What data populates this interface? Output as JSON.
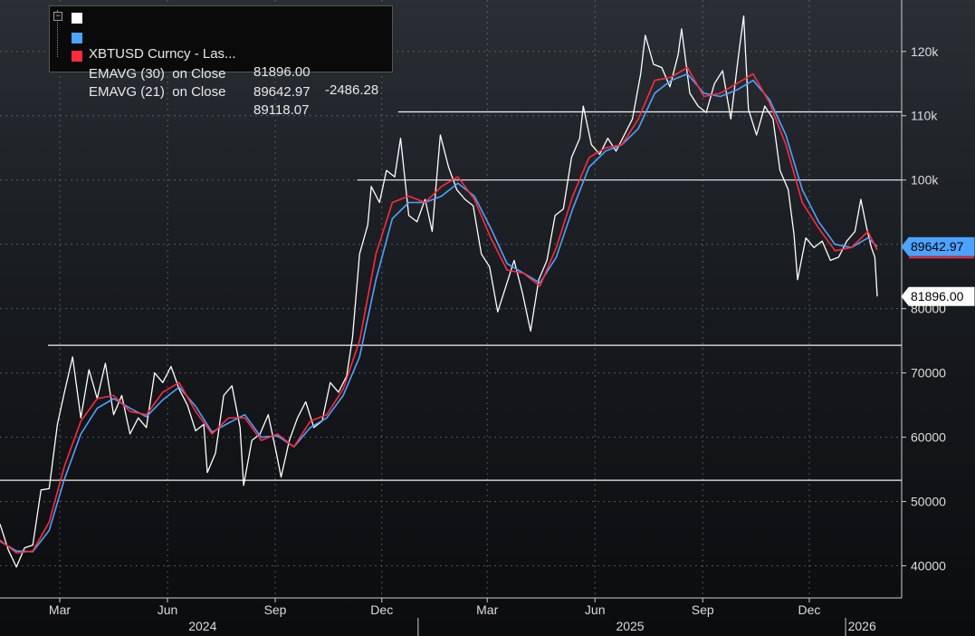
{
  "legend": {
    "rows": [
      {
        "name": "XBTUSD Curncy - Las...",
        "value": "81896.00",
        "change": "-2486.28",
        "color": "#ffffff"
      },
      {
        "name": "EMAVG (30)  on Close",
        "value": "89642.97",
        "color": "#4da3ff"
      },
      {
        "name": "EMAVG (21)  on Close",
        "value": "89118.07",
        "color": "#ff2a3d"
      }
    ]
  },
  "tags": {
    "ema30": "89642.97",
    "last": "81896.00"
  },
  "chart_data": {
    "type": "line",
    "title": "",
    "xlabel": "",
    "ylabel": "",
    "ylim": [
      35000,
      128000
    ],
    "x_range": [
      "2024-01-10",
      "2026-01-28"
    ],
    "y_ticks": [
      {
        "value": 40000,
        "label": "40000"
      },
      {
        "value": 50000,
        "label": "50000"
      },
      {
        "value": 60000,
        "label": "60000"
      },
      {
        "value": 70000,
        "label": "70000"
      },
      {
        "value": 80000,
        "label": "80000"
      },
      {
        "value": 100000,
        "label": "100k"
      },
      {
        "value": 110000,
        "label": "110k"
      },
      {
        "value": 120000,
        "label": "120k"
      }
    ],
    "x_ticks": [
      {
        "date": "2024-03-01",
        "label": "Mar"
      },
      {
        "date": "2024-06-01",
        "label": "Jun"
      },
      {
        "date": "2024-09-01",
        "label": "Sep"
      },
      {
        "date": "2024-12-01",
        "label": "Dec"
      },
      {
        "date": "2025-03-01",
        "label": "Mar"
      },
      {
        "date": "2025-06-01",
        "label": "Jun"
      },
      {
        "date": "2025-09-01",
        "label": "Sep"
      },
      {
        "date": "2025-12-01",
        "label": "Dec"
      }
    ],
    "years": [
      {
        "label": "2024",
        "center": "2024-07-01"
      },
      {
        "label": "2025",
        "center": "2025-07-01"
      },
      {
        "label": "2026",
        "center": "2026-01-15"
      }
    ],
    "year_separators": [
      "2025-01-01",
      "2026-01-01"
    ],
    "horizontal_lines": [
      {
        "value": 53300,
        "from": "2024-01-10"
      },
      {
        "value": 74300,
        "from": "2024-02-20"
      },
      {
        "value": 100000,
        "from": "2024-11-10"
      },
      {
        "value": 110600,
        "from": "2024-12-15"
      }
    ],
    "grid": true,
    "legend_position": "top-left",
    "series": [
      {
        "name": "XBTUSD Curncy - Las...",
        "color": "#ffffff",
        "points": [
          [
            "2024-01-10",
            46500
          ],
          [
            "2024-01-17",
            42500
          ],
          [
            "2024-01-24",
            39800
          ],
          [
            "2024-01-31",
            42800
          ],
          [
            "2024-02-07",
            43200
          ],
          [
            "2024-02-14",
            51800
          ],
          [
            "2024-02-21",
            52000
          ],
          [
            "2024-02-28",
            62000
          ],
          [
            "2024-03-05",
            67000
          ],
          [
            "2024-03-12",
            72500
          ],
          [
            "2024-03-19",
            63000
          ],
          [
            "2024-03-26",
            70500
          ],
          [
            "2024-04-02",
            66000
          ],
          [
            "2024-04-09",
            71500
          ],
          [
            "2024-04-16",
            63500
          ],
          [
            "2024-04-23",
            66500
          ],
          [
            "2024-04-30",
            60500
          ],
          [
            "2024-05-07",
            63000
          ],
          [
            "2024-05-14",
            61500
          ],
          [
            "2024-05-21",
            70000
          ],
          [
            "2024-05-28",
            68500
          ],
          [
            "2024-06-04",
            71000
          ],
          [
            "2024-06-11",
            67500
          ],
          [
            "2024-06-18",
            65000
          ],
          [
            "2024-06-25",
            61000
          ],
          [
            "2024-07-02",
            62000
          ],
          [
            "2024-07-05",
            54500
          ],
          [
            "2024-07-12",
            57500
          ],
          [
            "2024-07-19",
            66500
          ],
          [
            "2024-07-26",
            68000
          ],
          [
            "2024-08-02",
            61500
          ],
          [
            "2024-08-05",
            52500
          ],
          [
            "2024-08-12",
            59500
          ],
          [
            "2024-08-19",
            60500
          ],
          [
            "2024-08-26",
            63500
          ],
          [
            "2024-09-02",
            57500
          ],
          [
            "2024-09-06",
            53800
          ],
          [
            "2024-09-13",
            59500
          ],
          [
            "2024-09-20",
            63000
          ],
          [
            "2024-09-27",
            65500
          ],
          [
            "2024-10-04",
            61500
          ],
          [
            "2024-10-11",
            62500
          ],
          [
            "2024-10-18",
            68500
          ],
          [
            "2024-10-25",
            67000
          ],
          [
            "2024-11-01",
            69500
          ],
          [
            "2024-11-06",
            75500
          ],
          [
            "2024-11-12",
            88500
          ],
          [
            "2024-11-19",
            93000
          ],
          [
            "2024-11-22",
            99000
          ],
          [
            "2024-11-29",
            96500
          ],
          [
            "2024-12-05",
            101500
          ],
          [
            "2024-12-12",
            100500
          ],
          [
            "2024-12-17",
            106500
          ],
          [
            "2024-12-24",
            94500
          ],
          [
            "2024-12-31",
            93500
          ],
          [
            "2025-01-07",
            97000
          ],
          [
            "2025-01-13",
            92000
          ],
          [
            "2025-01-20",
            107000
          ],
          [
            "2025-01-27",
            102000
          ],
          [
            "2025-02-03",
            98500
          ],
          [
            "2025-02-10",
            97000
          ],
          [
            "2025-02-17",
            96000
          ],
          [
            "2025-02-24",
            88500
          ],
          [
            "2025-03-03",
            86500
          ],
          [
            "2025-03-10",
            79500
          ],
          [
            "2025-03-17",
            83500
          ],
          [
            "2025-03-24",
            87500
          ],
          [
            "2025-03-31",
            82500
          ],
          [
            "2025-04-07",
            76500
          ],
          [
            "2025-04-14",
            84500
          ],
          [
            "2025-04-21",
            87500
          ],
          [
            "2025-04-28",
            94500
          ],
          [
            "2025-05-05",
            95500
          ],
          [
            "2025-05-12",
            103500
          ],
          [
            "2025-05-19",
            106500
          ],
          [
            "2025-05-22",
            111500
          ],
          [
            "2025-05-29",
            105500
          ],
          [
            "2025-06-05",
            104000
          ],
          [
            "2025-06-12",
            106500
          ],
          [
            "2025-06-19",
            104500
          ],
          [
            "2025-06-26",
            107000
          ],
          [
            "2025-07-03",
            109500
          ],
          [
            "2025-07-10",
            116500
          ],
          [
            "2025-07-14",
            122500
          ],
          [
            "2025-07-21",
            118000
          ],
          [
            "2025-07-28",
            117500
          ],
          [
            "2025-08-04",
            114500
          ],
          [
            "2025-08-11",
            119500
          ],
          [
            "2025-08-14",
            123500
          ],
          [
            "2025-08-21",
            113500
          ],
          [
            "2025-08-28",
            111500
          ],
          [
            "2025-09-04",
            110500
          ],
          [
            "2025-09-11",
            115000
          ],
          [
            "2025-09-18",
            117000
          ],
          [
            "2025-09-25",
            109500
          ],
          [
            "2025-10-02",
            120000
          ],
          [
            "2025-10-06",
            125500
          ],
          [
            "2025-10-10",
            111000
          ],
          [
            "2025-10-17",
            107000
          ],
          [
            "2025-10-24",
            111500
          ],
          [
            "2025-10-31",
            109500
          ],
          [
            "2025-11-06",
            101500
          ],
          [
            "2025-11-13",
            98500
          ],
          [
            "2025-11-18",
            91500
          ],
          [
            "2025-11-21",
            84500
          ],
          [
            "2025-11-28",
            91000
          ],
          [
            "2025-12-05",
            89500
          ],
          [
            "2025-12-12",
            90500
          ],
          [
            "2025-12-19",
            87500
          ],
          [
            "2025-12-26",
            88000
          ],
          [
            "2026-01-02",
            90500
          ],
          [
            "2026-01-09",
            92000
          ],
          [
            "2026-01-14",
            97000
          ],
          [
            "2026-01-19",
            92500
          ],
          [
            "2026-01-23",
            89500
          ],
          [
            "2026-01-26",
            88000
          ],
          [
            "2026-01-28",
            81896
          ]
        ]
      },
      {
        "name": "EMAVG (30)  on Close",
        "color": "#4da3ff",
        "points": [
          [
            "2024-01-10",
            43800
          ],
          [
            "2024-01-24",
            42300
          ],
          [
            "2024-02-07",
            42200
          ],
          [
            "2024-02-21",
            45500
          ],
          [
            "2024-03-05",
            53500
          ],
          [
            "2024-03-19",
            60500
          ],
          [
            "2024-04-02",
            64500
          ],
          [
            "2024-04-16",
            66000
          ],
          [
            "2024-04-30",
            64500
          ],
          [
            "2024-05-14",
            63200
          ],
          [
            "2024-05-28",
            65800
          ],
          [
            "2024-06-11",
            67800
          ],
          [
            "2024-06-25",
            64800
          ],
          [
            "2024-07-09",
            60800
          ],
          [
            "2024-07-23",
            62200
          ],
          [
            "2024-08-06",
            63500
          ],
          [
            "2024-08-20",
            60000
          ],
          [
            "2024-09-03",
            60200
          ],
          [
            "2024-09-17",
            58500
          ],
          [
            "2024-10-01",
            61500
          ],
          [
            "2024-10-15",
            63000
          ],
          [
            "2024-10-29",
            66500
          ],
          [
            "2024-11-12",
            72500
          ],
          [
            "2024-11-26",
            84500
          ],
          [
            "2024-12-10",
            94000
          ],
          [
            "2024-12-24",
            96500
          ],
          [
            "2025-01-07",
            96500
          ],
          [
            "2025-01-21",
            97500
          ],
          [
            "2025-02-04",
            99500
          ],
          [
            "2025-02-18",
            97500
          ],
          [
            "2025-03-04",
            92500
          ],
          [
            "2025-03-18",
            87000
          ],
          [
            "2025-04-01",
            85500
          ],
          [
            "2025-04-15",
            84000
          ],
          [
            "2025-04-29",
            88000
          ],
          [
            "2025-05-13",
            95500
          ],
          [
            "2025-05-27",
            102000
          ],
          [
            "2025-06-10",
            104500
          ],
          [
            "2025-06-24",
            105500
          ],
          [
            "2025-07-08",
            108000
          ],
          [
            "2025-07-22",
            113500
          ],
          [
            "2025-08-05",
            115500
          ],
          [
            "2025-08-19",
            116500
          ],
          [
            "2025-09-02",
            113500
          ],
          [
            "2025-09-16",
            113000
          ],
          [
            "2025-09-30",
            114000
          ],
          [
            "2025-10-14",
            115500
          ],
          [
            "2025-10-28",
            112500
          ],
          [
            "2025-11-11",
            107000
          ],
          [
            "2025-11-25",
            98500
          ],
          [
            "2025-12-09",
            93500
          ],
          [
            "2025-12-23",
            90000
          ],
          [
            "2026-01-06",
            89500
          ],
          [
            "2026-01-20",
            91000
          ],
          [
            "2026-01-28",
            89643
          ]
        ]
      },
      {
        "name": "EMAVG (21)  on Close",
        "color": "#ff2a3d",
        "points": [
          [
            "2024-01-10",
            44000
          ],
          [
            "2024-01-24",
            42000
          ],
          [
            "2024-02-07",
            42300
          ],
          [
            "2024-02-21",
            46800
          ],
          [
            "2024-03-05",
            55500
          ],
          [
            "2024-03-19",
            62500
          ],
          [
            "2024-04-02",
            66000
          ],
          [
            "2024-04-16",
            66500
          ],
          [
            "2024-04-30",
            64000
          ],
          [
            "2024-05-14",
            63500
          ],
          [
            "2024-05-28",
            67000
          ],
          [
            "2024-06-11",
            68500
          ],
          [
            "2024-06-25",
            64000
          ],
          [
            "2024-07-09",
            60500
          ],
          [
            "2024-07-23",
            63000
          ],
          [
            "2024-08-06",
            63000
          ],
          [
            "2024-08-20",
            59500
          ],
          [
            "2024-09-03",
            60500
          ],
          [
            "2024-09-17",
            58500
          ],
          [
            "2024-10-01",
            62500
          ],
          [
            "2024-10-15",
            63500
          ],
          [
            "2024-10-29",
            67500
          ],
          [
            "2024-11-12",
            75000
          ],
          [
            "2024-11-26",
            88500
          ],
          [
            "2024-12-10",
            96500
          ],
          [
            "2024-12-24",
            97500
          ],
          [
            "2025-01-07",
            96500
          ],
          [
            "2025-01-21",
            99000
          ],
          [
            "2025-02-04",
            100500
          ],
          [
            "2025-02-18",
            97000
          ],
          [
            "2025-03-04",
            91000
          ],
          [
            "2025-03-18",
            86000
          ],
          [
            "2025-04-01",
            85500
          ],
          [
            "2025-04-15",
            83500
          ],
          [
            "2025-04-29",
            89500
          ],
          [
            "2025-05-13",
            97500
          ],
          [
            "2025-05-27",
            103500
          ],
          [
            "2025-06-10",
            105000
          ],
          [
            "2025-06-24",
            105500
          ],
          [
            "2025-07-08",
            109500
          ],
          [
            "2025-07-22",
            115500
          ],
          [
            "2025-08-05",
            116000
          ],
          [
            "2025-08-19",
            117500
          ],
          [
            "2025-09-02",
            113000
          ],
          [
            "2025-09-16",
            113500
          ],
          [
            "2025-09-30",
            115000
          ],
          [
            "2025-10-14",
            116500
          ],
          [
            "2025-10-28",
            112000
          ],
          [
            "2025-11-11",
            105500
          ],
          [
            "2025-11-25",
            96500
          ],
          [
            "2025-12-09",
            92500
          ],
          [
            "2025-12-23",
            89000
          ],
          [
            "2026-01-06",
            89500
          ],
          [
            "2026-01-20",
            92000
          ],
          [
            "2026-01-28",
            89118
          ]
        ]
      }
    ]
  }
}
